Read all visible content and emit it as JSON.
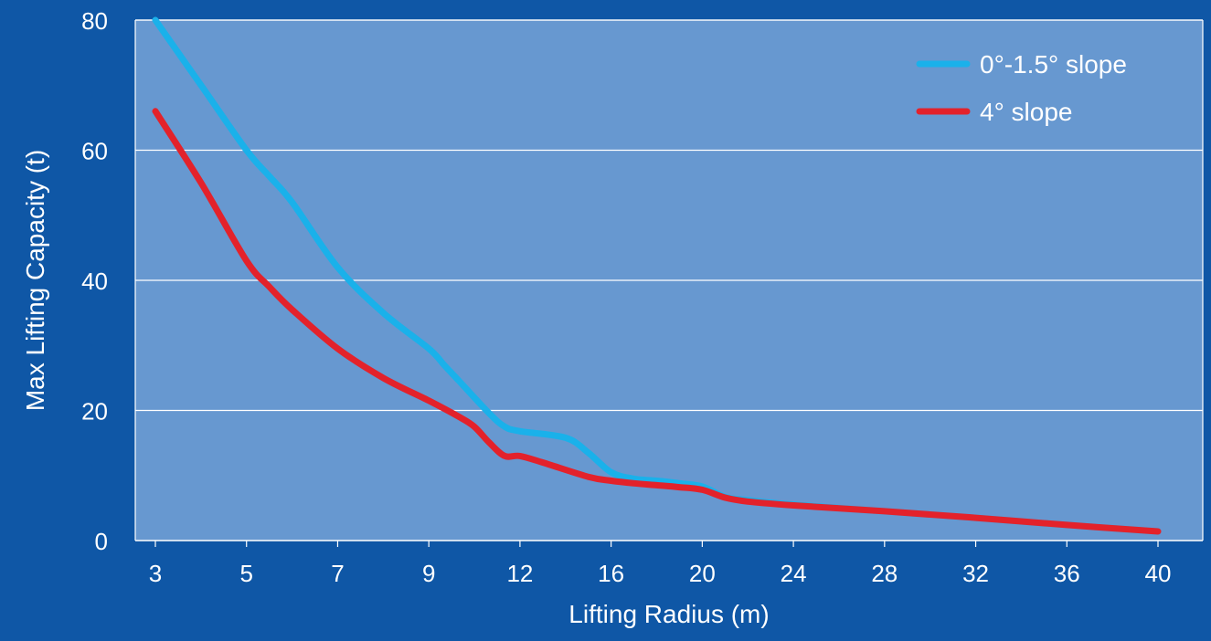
{
  "colors": {
    "background": "#0f57a6",
    "plot_area": "#6798d0",
    "grid": "#ffffff",
    "text": "#ffffff",
    "series_flat": "#1ab1ea",
    "series_slope": "#e3222b"
  },
  "chart_data": {
    "type": "line",
    "title": "",
    "xlabel": "Lifting Radius (m)",
    "ylabel": "Max Lifting Capacity (t)",
    "x_scale": "categorical (evenly spaced tick labels)",
    "categories": [
      "3",
      "5",
      "7",
      "9",
      "12",
      "16",
      "20",
      "24",
      "28",
      "32",
      "36",
      "40"
    ],
    "ylim": [
      0,
      80
    ],
    "yticks": [
      0,
      20,
      40,
      60,
      80
    ],
    "grid": "horizontal",
    "legend_position": "top-right",
    "legend": [
      {
        "label": "0°-1.5° slope",
        "color_key": "series_flat"
      },
      {
        "label": "4° slope",
        "color_key": "series_slope"
      }
    ],
    "series": [
      {
        "name": "0°-1.5° slope",
        "x": [
          3,
          4,
          5,
          5.5,
          6,
          7,
          8,
          9,
          9.5,
          10,
          11,
          11.5,
          12,
          14,
          15,
          16,
          17,
          18,
          19,
          20,
          21,
          22,
          24,
          28,
          32,
          36,
          40
        ],
        "values": [
          80,
          70,
          60,
          56,
          52,
          42,
          35,
          29.5,
          27,
          24.5,
          19.5,
          17.5,
          16.8,
          15.8,
          13.5,
          10.5,
          9.5,
          9.2,
          8.8,
          8.3,
          6.7,
          6.2,
          5.5,
          4.5,
          3.5,
          2.4,
          1.4
        ],
        "color_key": "series_flat"
      },
      {
        "name": "4° slope",
        "x": [
          3,
          4,
          5,
          5.5,
          6,
          7,
          8,
          9,
          10,
          10.5,
          11,
          11.5,
          12,
          13,
          15,
          16,
          17,
          18,
          19,
          20,
          21,
          22,
          24,
          28,
          32,
          36,
          40
        ],
        "values": [
          66,
          55,
          43,
          39,
          35.5,
          29.5,
          25,
          21.5,
          19,
          17.5,
          15,
          13,
          13,
          12,
          9.8,
          9.2,
          8.8,
          8.5,
          8.2,
          7.8,
          6.6,
          6,
          5.4,
          4.5,
          3.5,
          2.4,
          1.4
        ],
        "color_key": "series_slope"
      }
    ]
  }
}
